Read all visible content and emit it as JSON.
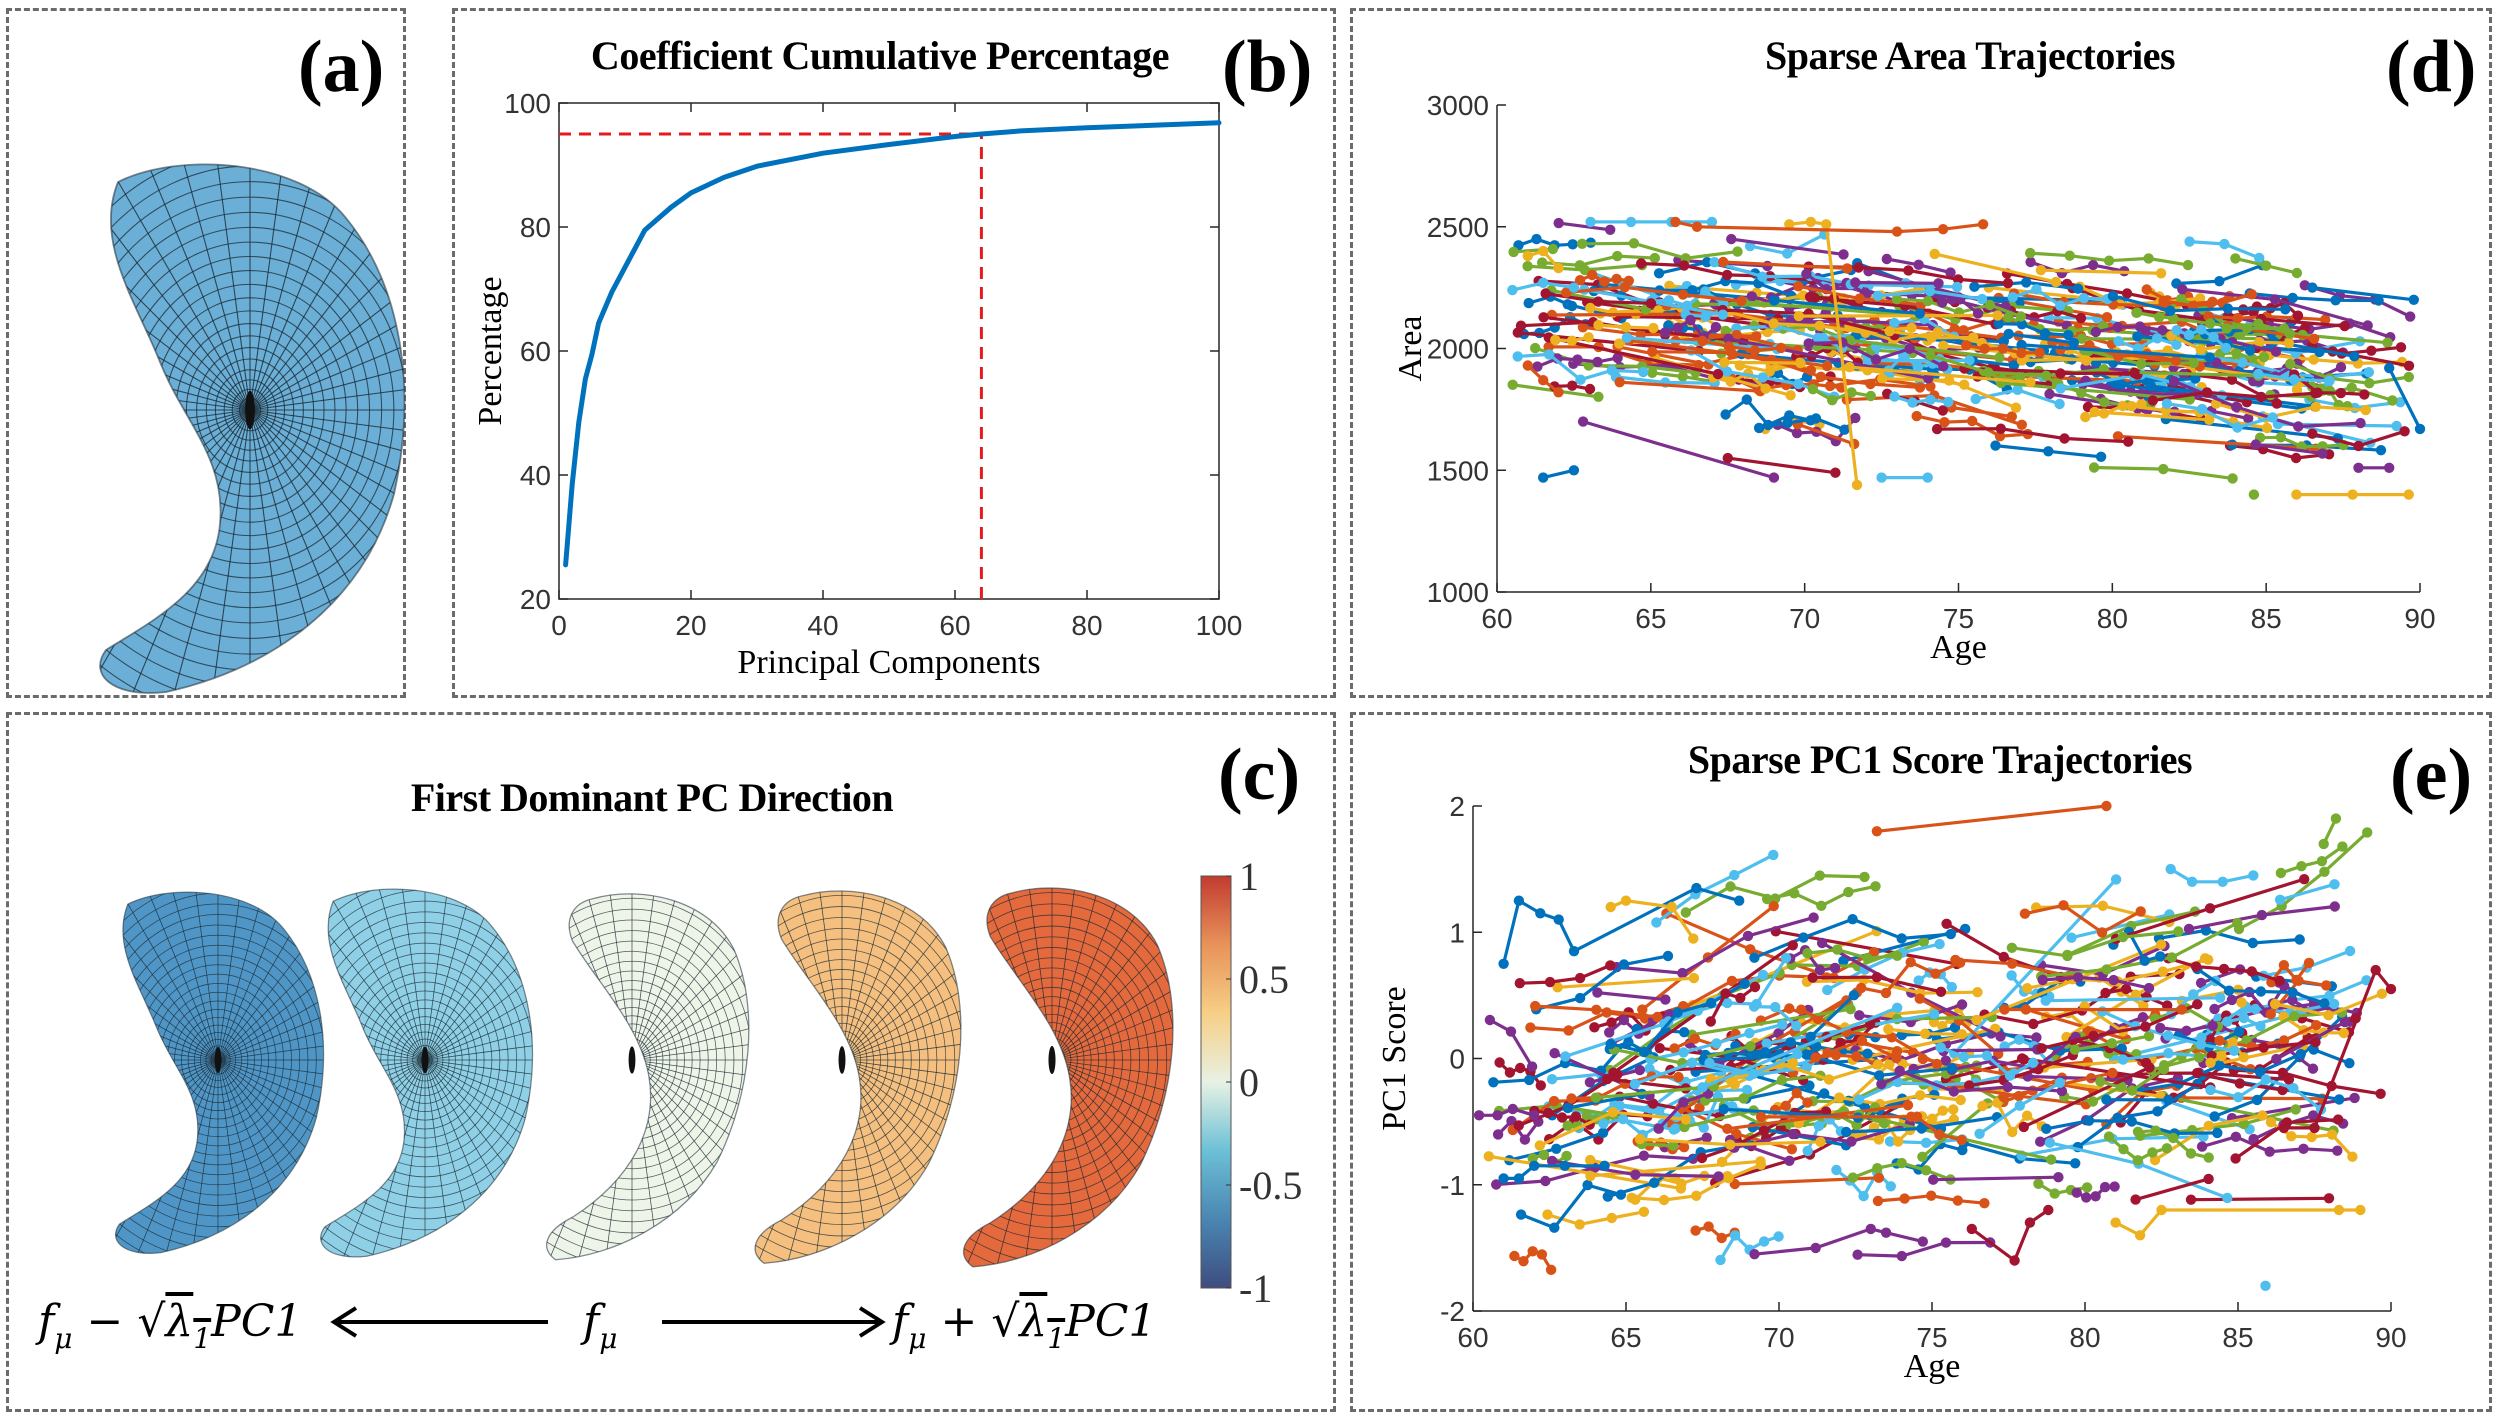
{
  "panels": {
    "a": {
      "label": "(a)",
      "description": "mean shape surface mesh",
      "surface_color": "#6baed6"
    },
    "b": {
      "label": "(b)"
    },
    "c": {
      "label": "(c)",
      "title": "First Dominant PC Direction",
      "shape_colors": [
        "#4f95c6",
        "#8fd0e6",
        "#eef4e8",
        "#f5c07f",
        "#e4693c"
      ],
      "equation_left": "fμ − √λ₁ PC1",
      "equation_center": "fμ",
      "equation_right": "fμ + √λ₁ PC1",
      "eq_left_parts": {
        "f": "f",
        "mu": "μ",
        "op": "−",
        "sqrt": "√",
        "lambda": "λ",
        "one": "1",
        "pc": "PC1"
      },
      "eq_right_parts": {
        "f": "f",
        "mu": "μ",
        "op": "+",
        "sqrt": "√",
        "lambda": "λ",
        "one": "1",
        "pc": "PC1"
      },
      "eq_center_parts": {
        "f": "f",
        "mu": "μ"
      },
      "colorbar": {
        "ticks": [
          "1",
          "0.5",
          "0",
          "-0.5",
          "-1"
        ],
        "tick_values": [
          1,
          0.5,
          0,
          -0.5,
          -1
        ],
        "range": [
          -1,
          1
        ],
        "colors": [
          "#3e4d7e",
          "#4a86b2",
          "#6cc0d6",
          "#e8f1e4",
          "#f6cf86",
          "#e8925a",
          "#c23b2f"
        ]
      }
    },
    "d": {
      "label": "(d)"
    },
    "e": {
      "label": "(e)"
    }
  },
  "chart_data": [
    {
      "id": "b",
      "type": "line",
      "title": "Coefficient Cumulative Percentage",
      "xlabel": "Principal Components",
      "ylabel": "Percentage",
      "xlim": [
        0,
        100
      ],
      "ylim": [
        20,
        100
      ],
      "xticks": [
        0,
        20,
        40,
        60,
        80,
        100
      ],
      "yticks": [
        20,
        40,
        60,
        80,
        100
      ],
      "grid": false,
      "series": [
        {
          "name": "cumulative percentage",
          "color": "#0072bd",
          "x": [
            1,
            2,
            3,
            4,
            5,
            6,
            8,
            10,
            13,
            17,
            20,
            25,
            30,
            40,
            50,
            60,
            64,
            70,
            80,
            90,
            100
          ],
          "y": [
            25.5,
            38.5,
            48.5,
            55.5,
            59.5,
            64.5,
            69.5,
            73.5,
            79.5,
            83.2,
            85.5,
            88.0,
            89.8,
            91.9,
            93.3,
            94.6,
            95.0,
            95.5,
            96.0,
            96.4,
            96.8
          ]
        }
      ],
      "reference_lines": [
        {
          "orientation": "horizontal",
          "value": 95,
          "from": 0,
          "to": 64,
          "color": "#e41a1c",
          "style": "dashed"
        },
        {
          "orientation": "vertical",
          "value": 64,
          "from": 20,
          "to": 95,
          "color": "#e41a1c",
          "style": "dashed"
        }
      ]
    },
    {
      "id": "d",
      "type": "line",
      "title": "Sparse Area Trajectories",
      "xlabel": "Age",
      "ylabel": "Area",
      "xlim": [
        60,
        90
      ],
      "ylim": [
        1000,
        3000
      ],
      "xticks": [
        60,
        65,
        70,
        75,
        80,
        85,
        90
      ],
      "yticks": [
        1000,
        1500,
        2000,
        2500,
        3000
      ],
      "grid": false,
      "markers": true,
      "color_cycle": [
        "#0072bd",
        "#d95319",
        "#edb120",
        "#7e2f8e",
        "#77ac30",
        "#4dbeee",
        "#a2142f"
      ],
      "subject_count_approx": 300,
      "population_trend": {
        "start_age": 60,
        "start_mean": 2200,
        "end_age": 90,
        "end_mean": 1850,
        "spread_sd": 190
      },
      "sample_series": [
        {
          "name": "s1",
          "x": [
            61.5,
            62.5
          ],
          "y": [
            1470,
            1500
          ]
        },
        {
          "name": "s2",
          "x": [
            62.8,
            69.0
          ],
          "y": [
            1700,
            1470
          ]
        },
        {
          "name": "s3",
          "x": [
            67.5,
            71.0
          ],
          "y": [
            1550,
            1490
          ]
        },
        {
          "name": "s4",
          "x": [
            69.5,
            70.2,
            70.7,
            71.7
          ],
          "y": [
            2510,
            2520,
            2510,
            1440
          ]
        },
        {
          "name": "s5",
          "x": [
            72.5,
            74.0
          ],
          "y": [
            1470,
            1470
          ]
        },
        {
          "name": "s6",
          "x": [
            65.8,
            66.5,
            73.0,
            74.5,
            75.8
          ],
          "y": [
            2520,
            2500,
            2480,
            2490,
            2510
          ]
        },
        {
          "name": "s7",
          "x": [
            84.0,
            85.0,
            86.0
          ],
          "y": [
            2370,
            2340,
            2310
          ]
        },
        {
          "name": "s8",
          "x": [
            86.5,
            89.8
          ],
          "y": [
            2250,
            2200
          ]
        },
        {
          "name": "s9",
          "x": [
            88.0,
            89.0
          ],
          "y": [
            1510,
            1510
          ]
        },
        {
          "name": "s10",
          "x": [
            86.5,
            88.0,
            89.5
          ],
          "y": [
            1650,
            1600,
            1660
          ]
        },
        {
          "name": "s11",
          "x": [
            61.0,
            61.5,
            62.0
          ],
          "y": [
            2380,
            2400,
            2330
          ]
        },
        {
          "name": "s12",
          "x": [
            60.5,
            61.5,
            62.5
          ],
          "y": [
            2240,
            2270,
            2250
          ]
        },
        {
          "name": "s13",
          "x": [
            61.0,
            61.5,
            62.0
          ],
          "y": [
            1930,
            1870,
            1820
          ]
        },
        {
          "name": "s14",
          "x": [
            84.6
          ],
          "y": [
            1400
          ]
        },
        {
          "name": "s15",
          "x": [
            89.0,
            90.0
          ],
          "y": [
            1920,
            1670
          ]
        }
      ]
    },
    {
      "id": "e",
      "type": "line",
      "title": "Sparse PC1 Score Trajectories",
      "xlabel": "Age",
      "ylabel": "PC1 Score",
      "xlim": [
        60,
        90
      ],
      "ylim": [
        -2,
        2
      ],
      "xticks": [
        60,
        65,
        70,
        75,
        80,
        85,
        90
      ],
      "yticks": [
        -2,
        -1,
        0,
        1,
        2
      ],
      "grid": false,
      "markers": true,
      "color_cycle": [
        "#0072bd",
        "#d95319",
        "#edb120",
        "#7e2f8e",
        "#77ac30",
        "#4dbeee",
        "#a2142f"
      ],
      "subject_count_approx": 300,
      "population_trend": {
        "start_age": 60,
        "start_mean": -0.35,
        "end_age": 90,
        "end_mean": 0.25,
        "spread_sd": 0.55
      },
      "sample_series": [
        {
          "name": "s1",
          "x": [
            61.0,
            61.5,
            62.2,
            62.8,
            63.3,
            67.3,
            68.7
          ],
          "y": [
            0.75,
            1.25,
            1.15,
            1.1,
            0.85,
            1.35,
            1.25
          ]
        },
        {
          "name": "s2",
          "x": [
            69.2,
            71.2,
            73.0,
            73.5,
            74.7
          ],
          "y": [
            -1.55,
            -1.5,
            -1.35,
            -1.38,
            -1.45
          ]
        },
        {
          "name": "s3",
          "x": [
            76.3,
            77.7,
            78.2,
            78.8
          ],
          "y": [
            -1.35,
            -1.6,
            -1.3,
            -1.2
          ]
        },
        {
          "name": "s4",
          "x": [
            81.0,
            81.8,
            82.5,
            88.3,
            89.0
          ],
          "y": [
            -1.3,
            -1.4,
            -1.2,
            -1.2,
            -1.2
          ]
        },
        {
          "name": "s5",
          "x": [
            85.9
          ],
          "y": [
            -1.8
          ]
        },
        {
          "name": "s6",
          "x": [
            73.2,
            80.7
          ],
          "y": [
            1.8,
            2.0
          ]
        },
        {
          "name": "s7",
          "x": [
            87.8,
            88.2
          ],
          "y": [
            1.7,
            1.9
          ]
        },
        {
          "name": "s8",
          "x": [
            61.0,
            61.5,
            62.0,
            63.0,
            64.3
          ],
          "y": [
            -0.95,
            -0.95,
            -0.85,
            -0.85,
            -0.85
          ]
        },
        {
          "name": "s9",
          "x": [
            60.2,
            60.8,
            61.3,
            62.0
          ],
          "y": [
            -0.45,
            -0.45,
            -0.4,
            -0.45
          ]
        },
        {
          "name": "s10",
          "x": [
            86.5,
            87.5,
            89.5,
            90.0
          ],
          "y": [
            -0.55,
            -0.55,
            0.7,
            0.55
          ]
        },
        {
          "name": "s11",
          "x": [
            64.5,
            65.0,
            66.5,
            67.2
          ],
          "y": [
            1.2,
            1.25,
            1.2,
            0.95
          ]
        },
        {
          "name": "s12",
          "x": [
            82.8,
            83.5,
            84.5,
            85.5
          ],
          "y": [
            1.5,
            1.4,
            1.4,
            1.45
          ]
        }
      ]
    }
  ]
}
